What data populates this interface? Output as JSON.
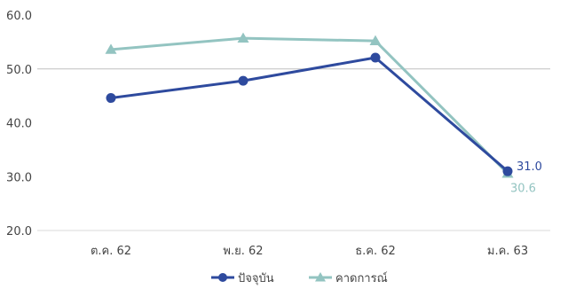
{
  "chart_data": {
    "type": "line",
    "title": "",
    "xlabel": "",
    "ylabel": "",
    "categories": [
      "ต.ค. 62",
      "พ.ย. 62",
      "ธ.ค. 62",
      "ม.ค. 63"
    ],
    "ylim": [
      20.0,
      60.0
    ],
    "yticks": [
      "20.0",
      "30.0",
      "40.0",
      "50.0",
      "60.0"
    ],
    "grid": false,
    "reference_line_y": 50.0,
    "legend_position": "bottom",
    "series": [
      {
        "name": "ปัจจุบัน",
        "values": [
          44.6,
          47.8,
          52.1,
          31.0
        ],
        "color": "#2e4a9e",
        "marker": "circle"
      },
      {
        "name": "คาดการณ์",
        "values": [
          53.6,
          55.7,
          55.2,
          30.6
        ],
        "color": "#93c4c1",
        "marker": "triangle"
      }
    ],
    "data_labels": [
      {
        "series": 0,
        "index": 3,
        "text": "31.0"
      },
      {
        "series": 1,
        "index": 3,
        "text": "30.6"
      }
    ]
  }
}
